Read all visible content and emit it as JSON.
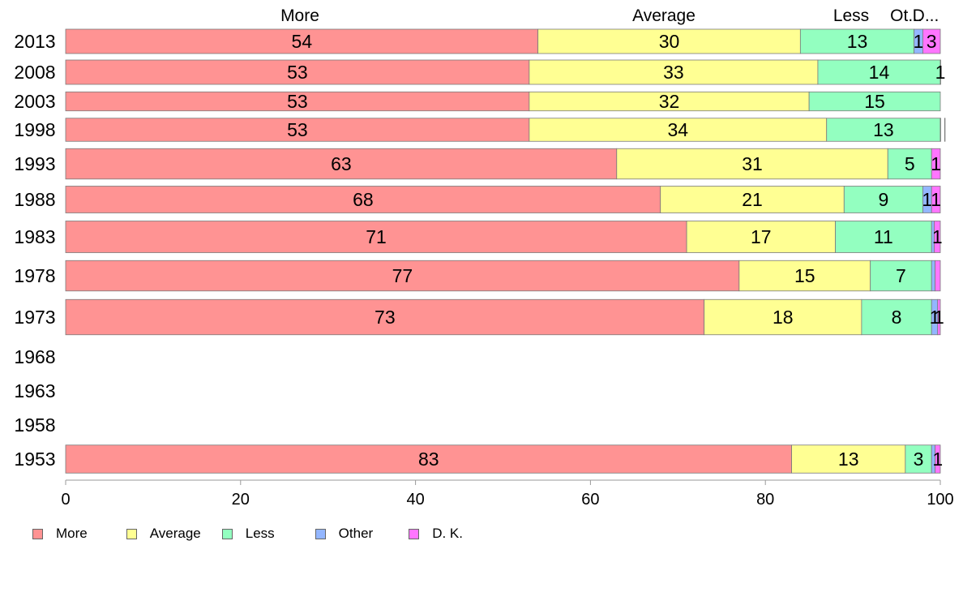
{
  "chart_data": {
    "type": "bar",
    "orientation": "horizontal",
    "stacked": true,
    "categories": [
      "2013",
      "2008",
      "2003",
      "1998",
      "1993",
      "1988",
      "1983",
      "1978",
      "1973",
      "1968",
      "1963",
      "1958",
      "1953"
    ],
    "bar_widths_relative": [
      1,
      1,
      0.78,
      0.95,
      1.25,
      1.1,
      1.3,
      1.25,
      1.45,
      0,
      0,
      0,
      1.15
    ],
    "series": [
      {
        "name": "More",
        "color": "#ff9393",
        "values": [
          54,
          53,
          53,
          53,
          63,
          68,
          71,
          77,
          73,
          null,
          null,
          null,
          83
        ]
      },
      {
        "name": "Average",
        "color": "#ffff93",
        "values": [
          30,
          33,
          32,
          34,
          31,
          21,
          17,
          15,
          18,
          null,
          null,
          null,
          13
        ]
      },
      {
        "name": "Less",
        "color": "#93ffc0",
        "values": [
          13,
          14,
          15,
          13,
          5,
          9,
          11,
          7,
          8,
          null,
          null,
          null,
          3
        ]
      },
      {
        "name": "Other",
        "color": "#93b6ff",
        "values": [
          1,
          0,
          0,
          0.5,
          0,
          1,
          0.3,
          0.4,
          0.7,
          null,
          null,
          null,
          0.4
        ]
      },
      {
        "name": "D. K.",
        "color": "#ff75ff",
        "values": [
          3,
          1,
          0,
          0.5,
          1,
          1,
          1,
          0.3,
          1,
          null,
          null,
          null,
          1
        ]
      }
    ],
    "data_labels": [
      [
        "54",
        "30",
        "13",
        "1",
        "3"
      ],
      [
        "53",
        "33",
        "14",
        "",
        "1"
      ],
      [
        "53",
        "32",
        "15",
        "",
        ""
      ],
      [
        "53",
        "34",
        "13",
        "",
        ""
      ],
      [
        "63",
        "31",
        "5",
        "",
        "1"
      ],
      [
        "68",
        "21",
        "9",
        "1",
        "1"
      ],
      [
        "71",
        "17",
        "11",
        "",
        "1"
      ],
      [
        "77",
        "15",
        "7",
        "",
        ""
      ],
      [
        "73",
        "18",
        "8",
        "1",
        "1"
      ],
      [
        "",
        "",
        "",
        "",
        ""
      ],
      [
        "",
        "",
        "",
        "",
        ""
      ],
      [
        "",
        "",
        "",
        "",
        ""
      ],
      [
        "83",
        "13",
        "3",
        "",
        "1"
      ]
    ],
    "top_labels": [
      "More",
      "Average",
      "Less",
      "Ot...",
      "D..."
    ],
    "xlim": [
      0,
      100
    ],
    "xticks": [
      0,
      20,
      40,
      60,
      80,
      100
    ],
    "xtick_labels": [
      "0",
      "20",
      "40",
      "60",
      "80",
      "100"
    ],
    "legend_position": "bottom-left",
    "grid": false
  }
}
